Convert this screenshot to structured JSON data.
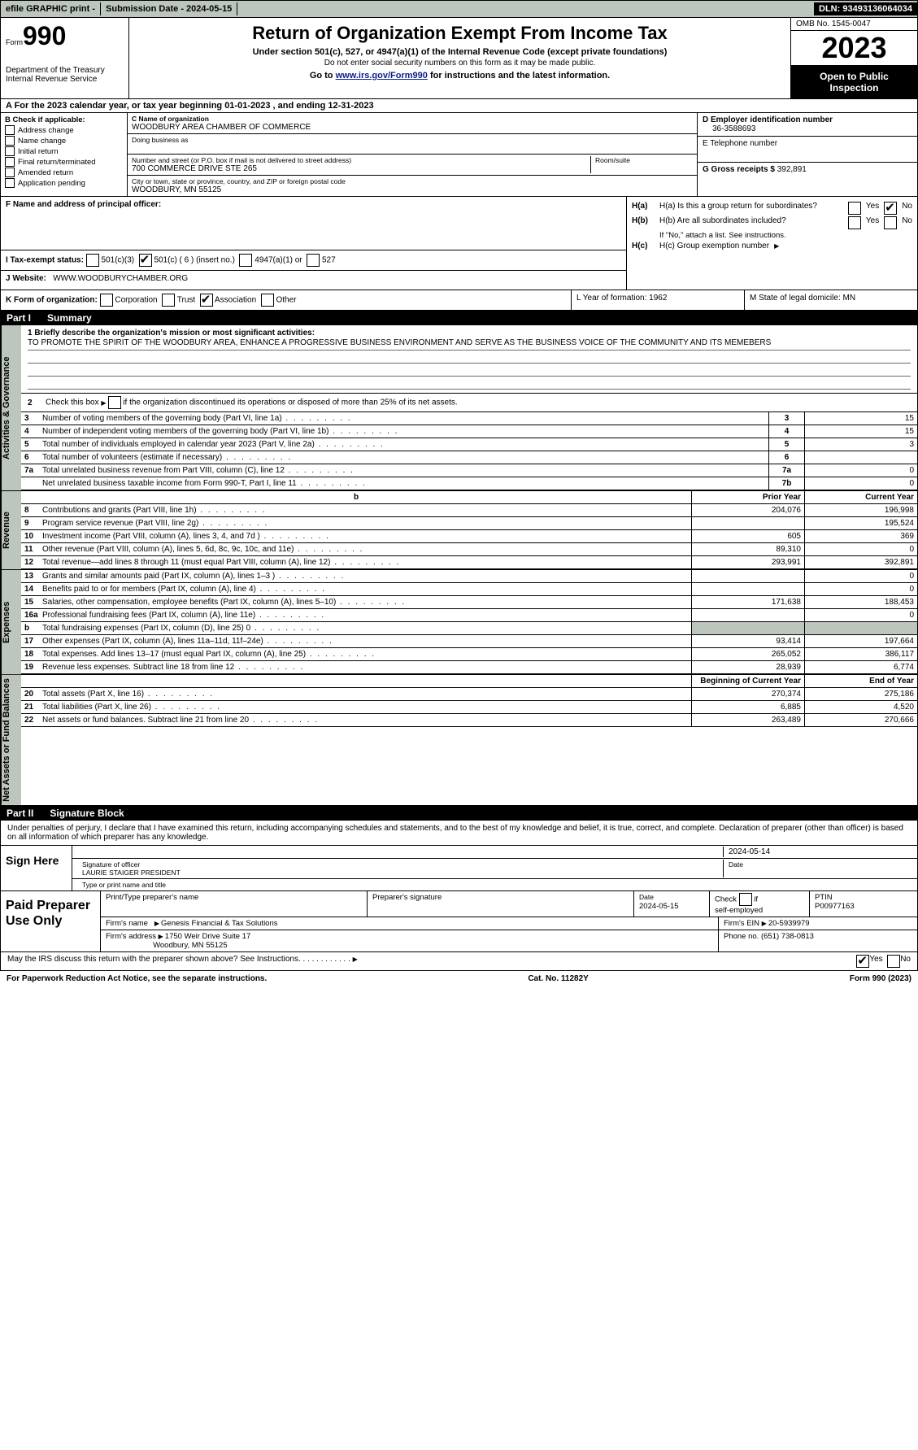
{
  "topbar": {
    "efile": "efile GRAPHIC print -",
    "submission": "Submission Date - 2024-05-15",
    "dln": "DLN: 93493136064034"
  },
  "header": {
    "form_word": "Form",
    "form_number": "990",
    "dept": "Department of the Treasury",
    "irs": "Internal Revenue Service",
    "title": "Return of Organization Exempt From Income Tax",
    "sub": "Under section 501(c), 527, or 4947(a)(1) of the Internal Revenue Code (except private foundations)",
    "sub2": "Do not enter social security numbers on this form as it may be made public.",
    "goto_pre": "Go to ",
    "goto_link": "www.irs.gov/Form990",
    "goto_post": " for instructions and the latest information.",
    "omb": "OMB No. 1545-0047",
    "year": "2023",
    "open": "Open to Public Inspection"
  },
  "row_a": "A  For the 2023 calendar year, or tax year beginning 01-01-2023    , and ending 12-31-2023",
  "col_b": {
    "title": "B Check if applicable:",
    "items": [
      "Address change",
      "Name change",
      "Initial return",
      "Final return/terminated",
      "Amended return",
      "Application pending"
    ]
  },
  "col_c": {
    "name_lbl": "C Name of organization",
    "name": "WOODBURY AREA CHAMBER OF COMMERCE",
    "dba_lbl": "Doing business as",
    "addr_lbl": "Number and street (or P.O. box if mail is not delivered to street address)",
    "addr": "700 COMMERCE DRIVE STE 265",
    "room_lbl": "Room/suite",
    "city_lbl": "City or town, state or province, country, and ZIP or foreign postal code",
    "city": "WOODBURY, MN  55125"
  },
  "col_d": {
    "ein_lbl": "D Employer identification number",
    "ein": "36-3588693",
    "tel_lbl": "E Telephone number",
    "gross_lbl": "G Gross receipts $",
    "gross": "392,891"
  },
  "row_f": {
    "f_lbl": "F  Name and address of principal officer:",
    "ha": "H(a)  Is this a group return for subordinates?",
    "hb": "H(b)  Are all subordinates included?",
    "hb_note": "If \"No,\" attach a list. See instructions.",
    "hc": "H(c)  Group exemption number",
    "yes": "Yes",
    "no": "No"
  },
  "row_i": {
    "lbl": "I    Tax-exempt status:",
    "o1": "501(c)(3)",
    "o2": "501(c) ( 6 ) (insert no.)",
    "o3": "4947(a)(1) or",
    "o4": "527"
  },
  "row_j": {
    "lbl": "J    Website:",
    "val": "WWW.WOODBURYCHAMBER.ORG"
  },
  "row_k": {
    "k_lbl": "K Form of organization:",
    "k_opts": [
      "Corporation",
      "Trust",
      "Association",
      "Other"
    ],
    "l": "L Year of formation: 1962",
    "m": "M State of legal domicile: MN"
  },
  "parts": {
    "p1": "Part I",
    "p1t": "Summary",
    "p2": "Part II",
    "p2t": "Signature Block"
  },
  "vtabs": {
    "ag": "Activities & Governance",
    "rev": "Revenue",
    "exp": "Expenses",
    "na": "Net Assets or Fund Balances"
  },
  "summary": {
    "l1_lbl": "1   Briefly describe the organization's mission or most significant activities:",
    "l1_txt": "TO PROMOTE THE SPIRIT OF THE WOODBURY AREA, ENHANCE A PROGRESSIVE BUSINESS ENVIRONMENT AND SERVE AS THE BUSINESS VOICE OF THE COMMUNITY AND ITS MEMEBERS",
    "l2": "2   Check this box        if the organization discontinued its operations or disposed of more than 25% of its net assets.",
    "rows_ag": [
      {
        "n": "3",
        "d": "Number of voting members of the governing body (Part VI, line 1a)",
        "c": "3",
        "v": "15"
      },
      {
        "n": "4",
        "d": "Number of independent voting members of the governing body (Part VI, line 1b)",
        "c": "4",
        "v": "15"
      },
      {
        "n": "5",
        "d": "Total number of individuals employed in calendar year 2023 (Part V, line 2a)",
        "c": "5",
        "v": "3"
      },
      {
        "n": "6",
        "d": "Total number of volunteers (estimate if necessary)",
        "c": "6",
        "v": ""
      },
      {
        "n": "7a",
        "d": "Total unrelated business revenue from Part VIII, column (C), line 12",
        "c": "7a",
        "v": "0"
      },
      {
        "n": "",
        "d": "Net unrelated business taxable income from Form 990-T, Part I, line 11",
        "c": "7b",
        "v": "0"
      }
    ],
    "col_hdr_b": "b",
    "prior": "Prior Year",
    "current": "Current Year",
    "rows_rev": [
      {
        "n": "8",
        "d": "Contributions and grants (Part VIII, line 1h)",
        "py": "204,076",
        "cy": "196,998"
      },
      {
        "n": "9",
        "d": "Program service revenue (Part VIII, line 2g)",
        "py": "",
        "cy": "195,524"
      },
      {
        "n": "10",
        "d": "Investment income (Part VIII, column (A), lines 3, 4, and 7d )",
        "py": "605",
        "cy": "369"
      },
      {
        "n": "11",
        "d": "Other revenue (Part VIII, column (A), lines 5, 6d, 8c, 9c, 10c, and 11e)",
        "py": "89,310",
        "cy": "0"
      },
      {
        "n": "12",
        "d": "Total revenue—add lines 8 through 11 (must equal Part VIII, column (A), line 12)",
        "py": "293,991",
        "cy": "392,891"
      }
    ],
    "rows_exp": [
      {
        "n": "13",
        "d": "Grants and similar amounts paid (Part IX, column (A), lines 1–3 )",
        "py": "",
        "cy": "0"
      },
      {
        "n": "14",
        "d": "Benefits paid to or for members (Part IX, column (A), line 4)",
        "py": "",
        "cy": "0"
      },
      {
        "n": "15",
        "d": "Salaries, other compensation, employee benefits (Part IX, column (A), lines 5–10)",
        "py": "171,638",
        "cy": "188,453"
      },
      {
        "n": "16a",
        "d": "Professional fundraising fees (Part IX, column (A), line 11e)",
        "py": "",
        "cy": "0"
      },
      {
        "n": "b",
        "d": "Total fundraising expenses (Part IX, column (D), line 25) 0",
        "py": "SHADE",
        "cy": "SHADE"
      },
      {
        "n": "17",
        "d": "Other expenses (Part IX, column (A), lines 11a–11d, 11f–24e)",
        "py": "93,414",
        "cy": "197,664"
      },
      {
        "n": "18",
        "d": "Total expenses. Add lines 13–17 (must equal Part IX, column (A), line 25)",
        "py": "265,052",
        "cy": "386,117"
      },
      {
        "n": "19",
        "d": "Revenue less expenses. Subtract line 18 from line 12",
        "py": "28,939",
        "cy": "6,774"
      }
    ],
    "begin": "Beginning of Current Year",
    "end": "End of Year",
    "rows_na": [
      {
        "n": "20",
        "d": "Total assets (Part X, line 16)",
        "py": "270,374",
        "cy": "275,186"
      },
      {
        "n": "21",
        "d": "Total liabilities (Part X, line 26)",
        "py": "6,885",
        "cy": "4,520"
      },
      {
        "n": "22",
        "d": "Net assets or fund balances. Subtract line 21 from line 20",
        "py": "263,489",
        "cy": "270,666"
      }
    ]
  },
  "sig": {
    "intro": "Under penalties of perjury, I declare that I have examined this return, including accompanying schedules and statements, and to the best of my knowledge and belief, it is true, correct, and complete. Declaration of preparer (other than officer) is based on all information of which preparer has any knowledge.",
    "sign_here": "Sign Here",
    "sig_officer_lbl": "Signature of officer",
    "officer": "LAURIE STAIGER  PRESIDENT",
    "type_lbl": "Type or print name and title",
    "date_lbl": "Date",
    "date": "2024-05-14",
    "paid": "Paid Preparer Use Only",
    "prep_name_lbl": "Print/Type preparer's name",
    "prep_sig_lbl": "Preparer's signature",
    "prep_date_lbl": "Date",
    "prep_date": "2024-05-15",
    "check_self": "Check        if self-employed",
    "ptin_lbl": "PTIN",
    "ptin": "P00977163",
    "firm_name_lbl": "Firm's name",
    "firm_name": "Genesis Financial & Tax Solutions",
    "firm_ein_lbl": "Firm's EIN",
    "firm_ein": "20-5939979",
    "firm_addr_lbl": "Firm's address",
    "firm_addr1": "1750 Weir Drive Suite 17",
    "firm_addr2": "Woodbury, MN  55125",
    "phone_lbl": "Phone no.",
    "phone": "(651) 738-0813",
    "discuss": "May the IRS discuss this return with the preparer shown above? See Instructions.",
    "yes": "Yes",
    "no": "No"
  },
  "footer": {
    "pra": "For Paperwork Reduction Act Notice, see the separate instructions.",
    "cat": "Cat. No. 11282Y",
    "form": "Form 990 (2023)"
  },
  "colors": {
    "header_bg": "#bdc6bd",
    "black": "#000000",
    "link": "#0b1e8a"
  }
}
